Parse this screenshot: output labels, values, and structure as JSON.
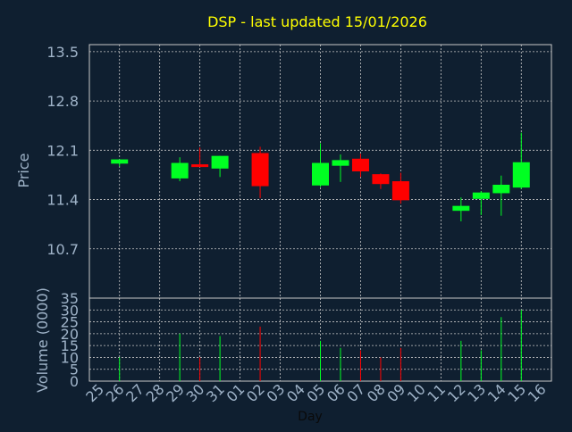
{
  "chart_data": [
    {
      "type": "candlestick",
      "title": "DSP - last updated 15/01/2026",
      "ylabel": "Price",
      "ylim": [
        10.0,
        13.6
      ],
      "yticks": [
        "13.5",
        "12.8",
        "12.1",
        "11.4",
        "10.7"
      ],
      "ytick_values": [
        13.5,
        12.8,
        12.1,
        11.4,
        10.7
      ],
      "grid": true,
      "x_labels": [
        "25",
        "26",
        "27",
        "28",
        "29",
        "30",
        "31",
        "01",
        "02",
        "03",
        "04",
        "05",
        "06",
        "07",
        "08",
        "09",
        "10",
        "11",
        "12",
        "13",
        "14",
        "15",
        "16"
      ],
      "series": [
        {
          "x": "26",
          "open": 11.91,
          "high": 11.97,
          "low": 11.87,
          "close": 11.97
        },
        {
          "x": "29",
          "open": 11.7,
          "high": 12.0,
          "low": 11.66,
          "close": 11.92
        },
        {
          "x": "30",
          "open": 11.9,
          "high": 12.14,
          "low": 11.86,
          "close": 11.87
        },
        {
          "x": "31",
          "open": 11.84,
          "high": 12.02,
          "low": 11.72,
          "close": 12.02
        },
        {
          "x": "02",
          "open": 12.06,
          "high": 12.15,
          "low": 11.42,
          "close": 11.59
        },
        {
          "x": "05",
          "open": 11.6,
          "high": 12.2,
          "low": 11.58,
          "close": 11.92
        },
        {
          "x": "06",
          "open": 11.88,
          "high": 12.04,
          "low": 11.65,
          "close": 11.96
        },
        {
          "x": "07",
          "open": 11.98,
          "high": 12.05,
          "low": 11.72,
          "close": 11.8
        },
        {
          "x": "08",
          "open": 11.76,
          "high": 11.77,
          "low": 11.55,
          "close": 11.62
        },
        {
          "x": "09",
          "open": 11.66,
          "high": 11.78,
          "low": 11.34,
          "close": 11.39
        },
        {
          "x": "12",
          "open": 11.24,
          "high": 11.43,
          "low": 11.09,
          "close": 11.31
        },
        {
          "x": "13",
          "open": 11.41,
          "high": 11.52,
          "low": 11.18,
          "close": 11.5
        },
        {
          "x": "14",
          "open": 11.49,
          "high": 11.74,
          "low": 11.17,
          "close": 11.61
        },
        {
          "x": "15",
          "open": 11.57,
          "high": 12.35,
          "low": 11.55,
          "close": 11.93
        }
      ]
    },
    {
      "type": "bar",
      "ylabel": "Volume (0000)",
      "xlabel": "Day",
      "ylim": [
        0,
        35
      ],
      "yticks": [
        "35",
        "30",
        "25",
        "20",
        "15",
        "10",
        "5",
        "0"
      ],
      "ytick_values": [
        35,
        30,
        25,
        20,
        15,
        10,
        5,
        0
      ],
      "grid": true,
      "categories": [
        "26",
        "29",
        "30",
        "31",
        "02",
        "05",
        "06",
        "07",
        "08",
        "09",
        "12",
        "13",
        "14",
        "15"
      ],
      "values": [
        10,
        20,
        10,
        19,
        23,
        17,
        14,
        13,
        10,
        14,
        17,
        13,
        27,
        30
      ],
      "directions": [
        "up",
        "up",
        "down",
        "up",
        "down",
        "up",
        "up",
        "down",
        "down",
        "down",
        "up",
        "up",
        "up",
        "up"
      ]
    }
  ],
  "colors": {
    "background": "#0f1f30",
    "grid": "#c8c8c8",
    "axis_text": "#9fb3c8",
    "title": "#ffff00",
    "up": "#00ff22",
    "down": "#ff0000"
  }
}
